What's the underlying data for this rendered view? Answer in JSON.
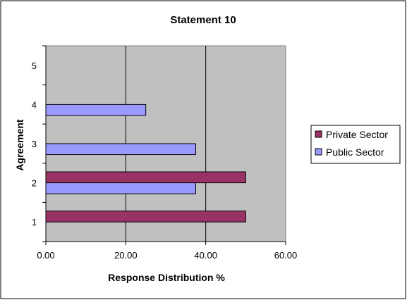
{
  "chart_data": {
    "type": "bar",
    "orientation": "horizontal",
    "title": "Statement 10",
    "xlabel": "Response Distribution %",
    "ylabel": "Agreement",
    "categories": [
      "1",
      "2",
      "3",
      "4",
      "5"
    ],
    "xlim": [
      0,
      60
    ],
    "xticks": [
      "0.00",
      "20.00",
      "40.00",
      "60.00"
    ],
    "grid": true,
    "legend_position": "right",
    "series": [
      {
        "name": "Private Sector",
        "color": "#993366",
        "values": [
          50,
          50,
          0,
          0,
          0
        ]
      },
      {
        "name": "Public Sector",
        "color": "#9999ff",
        "values": [
          0,
          37.5,
          37.5,
          25,
          0
        ]
      }
    ],
    "plot_background": "#c0c0c0"
  }
}
